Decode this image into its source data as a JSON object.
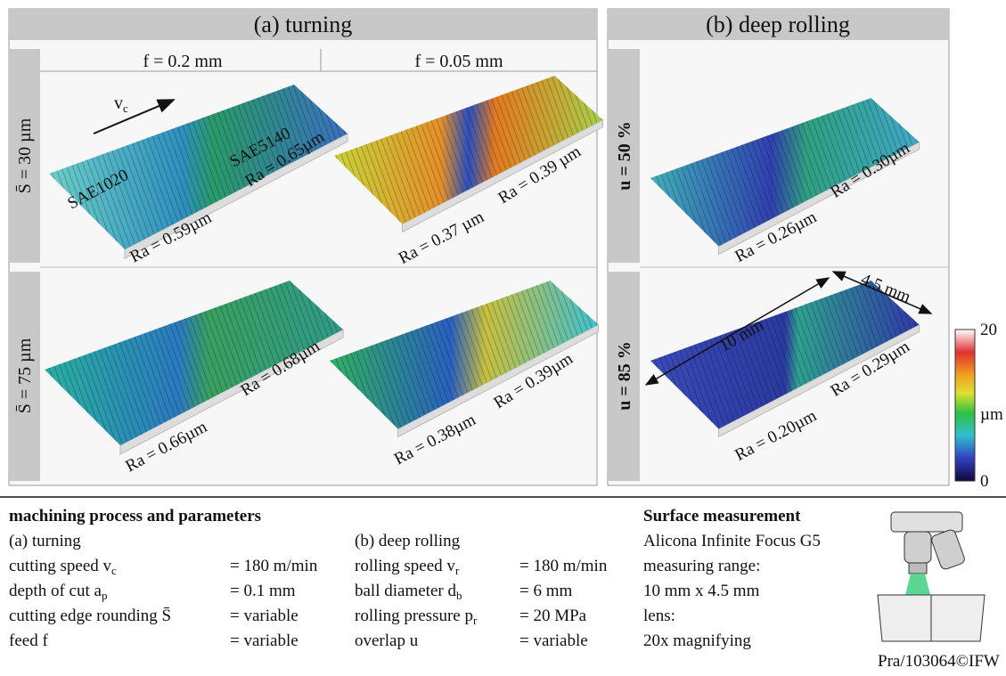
{
  "header": {
    "turning": "(a) turning",
    "rolling": "(b) deep rolling"
  },
  "columns": [
    "f = 0.2 mm",
    "f = 0.05 mm"
  ],
  "turning_rows": [
    "S̄ = 30 µm",
    "S̄ = 75 µm"
  ],
  "rolling_rows": [
    "u = 50 %",
    "u = 85 %"
  ],
  "panels": {
    "turning_30_f02": {
      "feed_label": "v",
      "feed_sub": "c",
      "material_left": "SAE1020",
      "material_right": "SAE5140",
      "ra_left": "Ra = 0.59µm",
      "ra_right": "Ra = 0.65µm"
    },
    "turning_30_f005": {
      "ra_left": "Ra = 0.37 µm",
      "ra_right": "Ra = 0.39 µm"
    },
    "turning_75_f02": {
      "ra_left": "Ra = 0.66µm",
      "ra_right": "Ra = 0.68µm"
    },
    "turning_75_f005": {
      "ra_left": "Ra = 0.38µm",
      "ra_right": "Ra = 0.39µm"
    },
    "rolling_50": {
      "ra_left": "Ra = 0.26µm",
      "ra_right": "Ra = 0.30µm"
    },
    "rolling_85": {
      "ra_left": "Ra = 0.20µm",
      "ra_right": "Ra = 0.29µm",
      "length": "10 mm",
      "width": "4.5 mm"
    }
  },
  "colorbar": {
    "top": "20",
    "middle": "µm",
    "bottom": "0"
  },
  "params": {
    "title": "machining process and parameters",
    "turning": {
      "heading": "(a) turning",
      "items": [
        {
          "label": "cutting speed v",
          "sub": "c",
          "value": "= 180 m/min"
        },
        {
          "label": "depth of cut a",
          "sub": "p",
          "value": "= 0.1 mm"
        },
        {
          "label": "cutting edge rounding S̄",
          "value": "= variable"
        },
        {
          "label": "feed f",
          "value": "= variable"
        }
      ]
    },
    "rolling": {
      "heading": "(b) deep rolling",
      "items": [
        {
          "label": "rolling speed v",
          "sub": "r",
          "value": "= 180 m/min"
        },
        {
          "label": "ball diameter d",
          "sub": "b",
          "value": "= 6 mm"
        },
        {
          "label": "rolling pressure p",
          "sub": "r",
          "value": "= 20 MPa"
        },
        {
          "label": "overlap u",
          "value": "= variable"
        }
      ]
    }
  },
  "measurement": {
    "title": "Surface measurement",
    "lines": [
      "Alicona Infinite Focus G5",
      "measuring range:",
      "10 mm x 4.5 mm",
      "lens:",
      "20x magnifying"
    ],
    "caption": "Pra/103064©IFW"
  }
}
